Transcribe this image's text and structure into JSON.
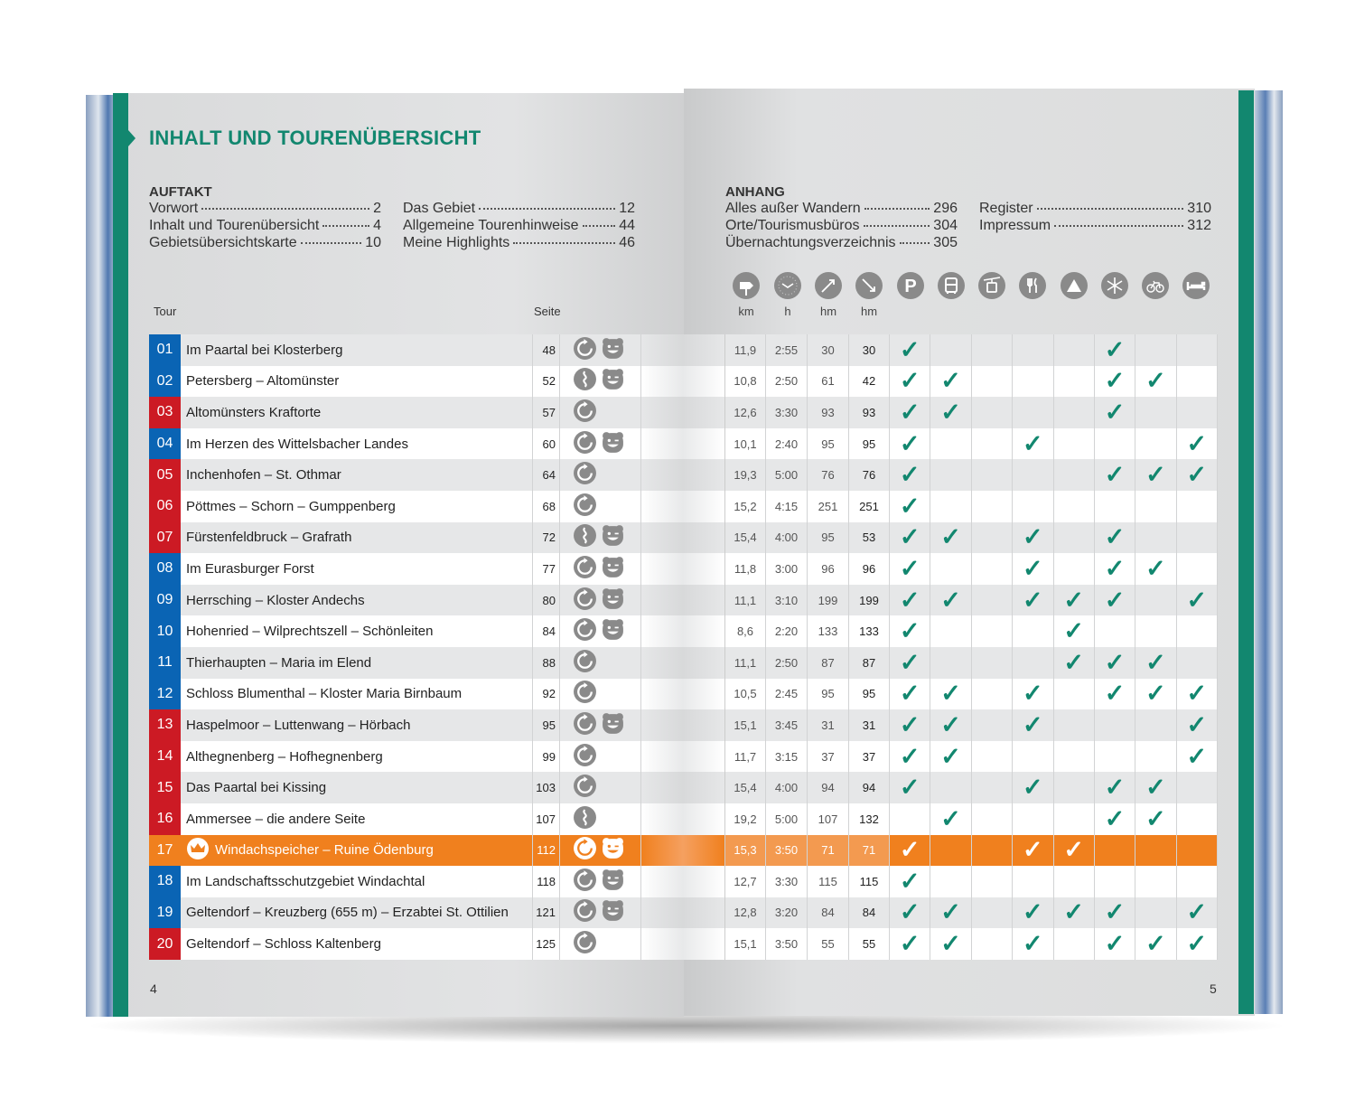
{
  "title": "INHALT UND TOURENÜBERSICHT",
  "auftakt": {
    "heading": "AUFTAKT",
    "col1": [
      {
        "label": "Vorwort",
        "page": "2"
      },
      {
        "label": "Inhalt und Tourenübersicht",
        "page": "4"
      },
      {
        "label": "Gebietsübersichtskarte",
        "page": "10"
      }
    ],
    "col2": [
      {
        "label": "Das Gebiet",
        "page": "12"
      },
      {
        "label": "Allgemeine Tourenhinweise",
        "page": "44"
      },
      {
        "label": "Meine Highlights",
        "page": "46"
      }
    ]
  },
  "anhang": {
    "heading": "ANHANG",
    "col1": [
      {
        "label": "Alles außer Wandern",
        "page": "296"
      },
      {
        "label": "Orte/Tourismusbüros",
        "page": "304"
      },
      {
        "label": "Übernachtungsverzeichnis",
        "page": "305"
      }
    ],
    "col2": [
      {
        "label": "Register",
        "page": "310"
      },
      {
        "label": "Impressum",
        "page": "312"
      }
    ]
  },
  "table_headers": {
    "tour": "Tour",
    "seite": "Seite",
    "km": "km",
    "h": "h",
    "hm_up": "hm",
    "hm_down": "hm"
  },
  "feature_icons": [
    "signpost-icon",
    "clock-icon",
    "ascent-icon",
    "descent-icon",
    "parking-icon",
    "bus-icon",
    "cable-car-icon",
    "restaurant-icon",
    "summit-icon",
    "winter-icon",
    "bicycle-icon",
    "accommodation-icon"
  ],
  "colors": {
    "teal": "#12876f",
    "blue": "#0a64b4",
    "red": "#cc1a24",
    "orange": "#f0801e"
  },
  "features_order": [
    "parking",
    "bus",
    "cable-car",
    "restaurant",
    "summit",
    "winter",
    "bicycle",
    "accommodation"
  ],
  "tours": [
    {
      "n": "01",
      "c": "blue",
      "name": "Im Paartal bei Klosterberg",
      "page": "48",
      "types": [
        "round",
        "family"
      ],
      "km": "11,9",
      "h": "2:55",
      "up": "30",
      "down": "30",
      "f": "10000100"
    },
    {
      "n": "02",
      "c": "blue",
      "name": "Petersberg – Altomünster",
      "page": "52",
      "types": [
        "linear",
        "family"
      ],
      "km": "10,8",
      "h": "2:50",
      "up": "61",
      "down": "42",
      "f": "11000110"
    },
    {
      "n": "03",
      "c": "red",
      "name": "Altomünsters Kraftorte",
      "page": "57",
      "types": [
        "round"
      ],
      "km": "12,6",
      "h": "3:30",
      "up": "93",
      "down": "93",
      "f": "11000100"
    },
    {
      "n": "04",
      "c": "blue",
      "name": "Im Herzen des Wittelsbacher Landes",
      "page": "60",
      "types": [
        "round",
        "family"
      ],
      "km": "10,1",
      "h": "2:40",
      "up": "95",
      "down": "95",
      "f": "10010001"
    },
    {
      "n": "05",
      "c": "red",
      "name": "Inchenhofen – St. Othmar",
      "page": "64",
      "types": [
        "round"
      ],
      "km": "19,3",
      "h": "5:00",
      "up": "76",
      "down": "76",
      "f": "10000111"
    },
    {
      "n": "06",
      "c": "red",
      "name": "Pöttmes – Schorn – Gumppenberg",
      "page": "68",
      "types": [
        "round"
      ],
      "km": "15,2",
      "h": "4:15",
      "up": "251",
      "down": "251",
      "f": "10000000"
    },
    {
      "n": "07",
      "c": "red",
      "name": "Fürstenfeldbruck – Grafrath",
      "page": "72",
      "types": [
        "linear",
        "family"
      ],
      "km": "15,4",
      "h": "4:00",
      "up": "95",
      "down": "53",
      "f": "11010100"
    },
    {
      "n": "08",
      "c": "blue",
      "name": "Im Eurasburger Forst",
      "page": "77",
      "types": [
        "round",
        "family"
      ],
      "km": "11,8",
      "h": "3:00",
      "up": "96",
      "down": "96",
      "f": "10010110"
    },
    {
      "n": "09",
      "c": "blue",
      "name": "Herrsching – Kloster Andechs",
      "page": "80",
      "types": [
        "round",
        "family"
      ],
      "km": "11,1",
      "h": "3:10",
      "up": "199",
      "down": "199",
      "f": "11011101"
    },
    {
      "n": "10",
      "c": "blue",
      "name": "Hohenried – Wilprechtszell – Schönleiten",
      "page": "84",
      "types": [
        "round",
        "family"
      ],
      "km": "8,6",
      "h": "2:20",
      "up": "133",
      "down": "133",
      "f": "10001000"
    },
    {
      "n": "11",
      "c": "blue",
      "name": "Thierhaupten – Maria im Elend",
      "page": "88",
      "types": [
        "round"
      ],
      "km": "11,1",
      "h": "2:50",
      "up": "87",
      "down": "87",
      "f": "10001110"
    },
    {
      "n": "12",
      "c": "blue",
      "name": "Schloss Blumenthal – Kloster Maria Birnbaum",
      "page": "92",
      "types": [
        "round"
      ],
      "km": "10,5",
      "h": "2:45",
      "up": "95",
      "down": "95",
      "f": "11010111"
    },
    {
      "n": "13",
      "c": "red",
      "name": "Haspelmoor – Luttenwang – Hörbach",
      "page": "95",
      "types": [
        "round",
        "family"
      ],
      "km": "15,1",
      "h": "3:45",
      "up": "31",
      "down": "31",
      "f": "11010001"
    },
    {
      "n": "14",
      "c": "red",
      "name": "Althegnenberg – Hofhegnenberg",
      "page": "99",
      "types": [
        "round"
      ],
      "km": "11,7",
      "h": "3:15",
      "up": "37",
      "down": "37",
      "f": "11000001"
    },
    {
      "n": "15",
      "c": "red",
      "name": "Das Paartal bei Kissing",
      "page": "103",
      "types": [
        "round"
      ],
      "km": "15,4",
      "h": "4:00",
      "up": "94",
      "down": "94",
      "f": "10010110"
    },
    {
      "n": "16",
      "c": "red",
      "name": "Ammersee – die andere Seite",
      "page": "107",
      "types": [
        "linear"
      ],
      "km": "19,2",
      "h": "5:00",
      "up": "107",
      "down": "132",
      "f": "01000110"
    },
    {
      "n": "17",
      "c": "red",
      "name": "Windachspeicher – Ruine Ödenburg",
      "page": "112",
      "types": [
        "round",
        "family"
      ],
      "km": "15,3",
      "h": "3:50",
      "up": "71",
      "down": "71",
      "f": "10011000",
      "highlight": true
    },
    {
      "n": "18",
      "c": "blue",
      "name": "Im Landschaftsschutzgebiet Windachtal",
      "page": "118",
      "types": [
        "round",
        "family"
      ],
      "km": "12,7",
      "h": "3:30",
      "up": "115",
      "down": "115",
      "f": "10000000"
    },
    {
      "n": "19",
      "c": "blue",
      "name": "Geltendorf – Kreuzberg (655 m) – Erzabtei St. Ottilien",
      "page": "121",
      "types": [
        "round",
        "family"
      ],
      "km": "12,8",
      "h": "3:20",
      "up": "84",
      "down": "84",
      "f": "11011101"
    },
    {
      "n": "20",
      "c": "red",
      "name": "Geltendorf – Schloss Kaltenberg",
      "page": "125",
      "types": [
        "round"
      ],
      "km": "15,1",
      "h": "3:50",
      "up": "55",
      "down": "55",
      "f": "11010111"
    }
  ],
  "page_numbers": {
    "left": "4",
    "right": "5"
  }
}
